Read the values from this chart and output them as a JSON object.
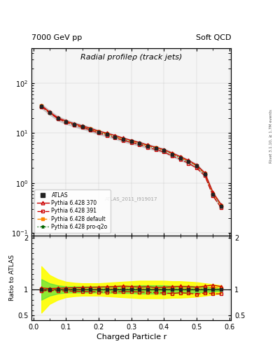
{
  "title": "Radial profileρ (track jets)",
  "top_left": "7000 GeV pp",
  "top_right": "Soft QCD",
  "xlabel": "Charged Particle r",
  "ylabel_ratio": "Ratio to ATLAS",
  "right_label": "Rivet 3.1.10, ≥ 1.7M events",
  "watermark": "ATLAS_2011_I919017",
  "r_values": [
    0.025,
    0.05,
    0.075,
    0.1,
    0.125,
    0.15,
    0.175,
    0.2,
    0.225,
    0.25,
    0.275,
    0.3,
    0.325,
    0.35,
    0.375,
    0.4,
    0.425,
    0.45,
    0.475,
    0.5,
    0.525,
    0.55,
    0.575
  ],
  "atlas_values": [
    35,
    26,
    20,
    17,
    15,
    13.5,
    12,
    10.5,
    9.5,
    8.5,
    7.5,
    6.8,
    6.2,
    5.5,
    5.0,
    4.5,
    3.8,
    3.2,
    2.7,
    2.2,
    1.5,
    0.6,
    0.35
  ],
  "atlas_err": [
    3.5,
    2.6,
    2.0,
    1.7,
    1.5,
    1.35,
    1.2,
    1.05,
    0.95,
    0.85,
    0.75,
    0.68,
    0.62,
    0.55,
    0.5,
    0.45,
    0.38,
    0.32,
    0.27,
    0.22,
    0.15,
    0.06,
    0.035
  ],
  "py370_values": [
    36,
    26.5,
    20.5,
    17.5,
    15.5,
    14,
    12.5,
    11,
    10,
    9,
    8,
    7.2,
    6.5,
    5.8,
    5.2,
    4.7,
    4.0,
    3.4,
    2.85,
    2.3,
    1.6,
    0.65,
    0.37
  ],
  "py391_values": [
    34,
    25.5,
    19.5,
    16.5,
    14.5,
    13,
    11.5,
    10,
    9.0,
    8.1,
    7.2,
    6.5,
    5.9,
    5.2,
    4.7,
    4.2,
    3.5,
    3.0,
    2.5,
    2.0,
    1.4,
    0.55,
    0.32
  ],
  "pydef_values": [
    35.5,
    26.0,
    20.2,
    17.2,
    15.2,
    13.7,
    12.2,
    10.7,
    9.7,
    8.7,
    7.7,
    7.0,
    6.3,
    5.6,
    5.1,
    4.6,
    3.9,
    3.3,
    2.75,
    2.25,
    1.55,
    0.62,
    0.36
  ],
  "pyq2o_values": [
    35.2,
    25.8,
    20.0,
    17.0,
    15.0,
    13.5,
    12.0,
    10.5,
    9.5,
    8.5,
    7.5,
    6.8,
    6.2,
    5.5,
    5.0,
    4.5,
    3.8,
    3.2,
    2.7,
    2.2,
    1.5,
    0.6,
    0.35
  ],
  "atlas_color": "#222222",
  "py370_color": "#cc0000",
  "py391_color": "#cc0000",
  "pydef_color": "#ff8800",
  "pyq2o_color": "#006600",
  "yellow_band_lower": [
    0.55,
    0.72,
    0.8,
    0.85,
    0.87,
    0.88,
    0.88,
    0.88,
    0.87,
    0.86,
    0.85,
    0.84,
    0.83,
    0.83,
    0.83,
    0.83,
    0.84,
    0.84,
    0.85,
    0.86,
    0.88,
    0.9,
    0.92
  ],
  "yellow_band_upper": [
    1.45,
    1.28,
    1.2,
    1.15,
    1.13,
    1.12,
    1.12,
    1.12,
    1.13,
    1.14,
    1.15,
    1.16,
    1.17,
    1.17,
    1.17,
    1.17,
    1.16,
    1.16,
    1.15,
    1.14,
    1.12,
    1.1,
    1.08
  ],
  "green_band_lower": [
    0.8,
    0.88,
    0.92,
    0.94,
    0.94,
    0.94,
    0.94,
    0.94,
    0.94,
    0.93,
    0.93,
    0.93,
    0.92,
    0.92,
    0.92,
    0.92,
    0.93,
    0.93,
    0.93,
    0.94,
    0.95,
    0.96,
    0.97
  ],
  "green_band_upper": [
    1.2,
    1.12,
    1.08,
    1.06,
    1.06,
    1.06,
    1.06,
    1.06,
    1.06,
    1.07,
    1.07,
    1.07,
    1.08,
    1.08,
    1.08,
    1.08,
    1.07,
    1.07,
    1.07,
    1.06,
    1.05,
    1.04,
    1.03
  ],
  "main_ylim": [
    0.09,
    500
  ],
  "ratio_ylim": [
    0.4,
    2.05
  ],
  "xlim": [
    -0.005,
    0.605
  ],
  "bg_color": "#f5f5f5"
}
